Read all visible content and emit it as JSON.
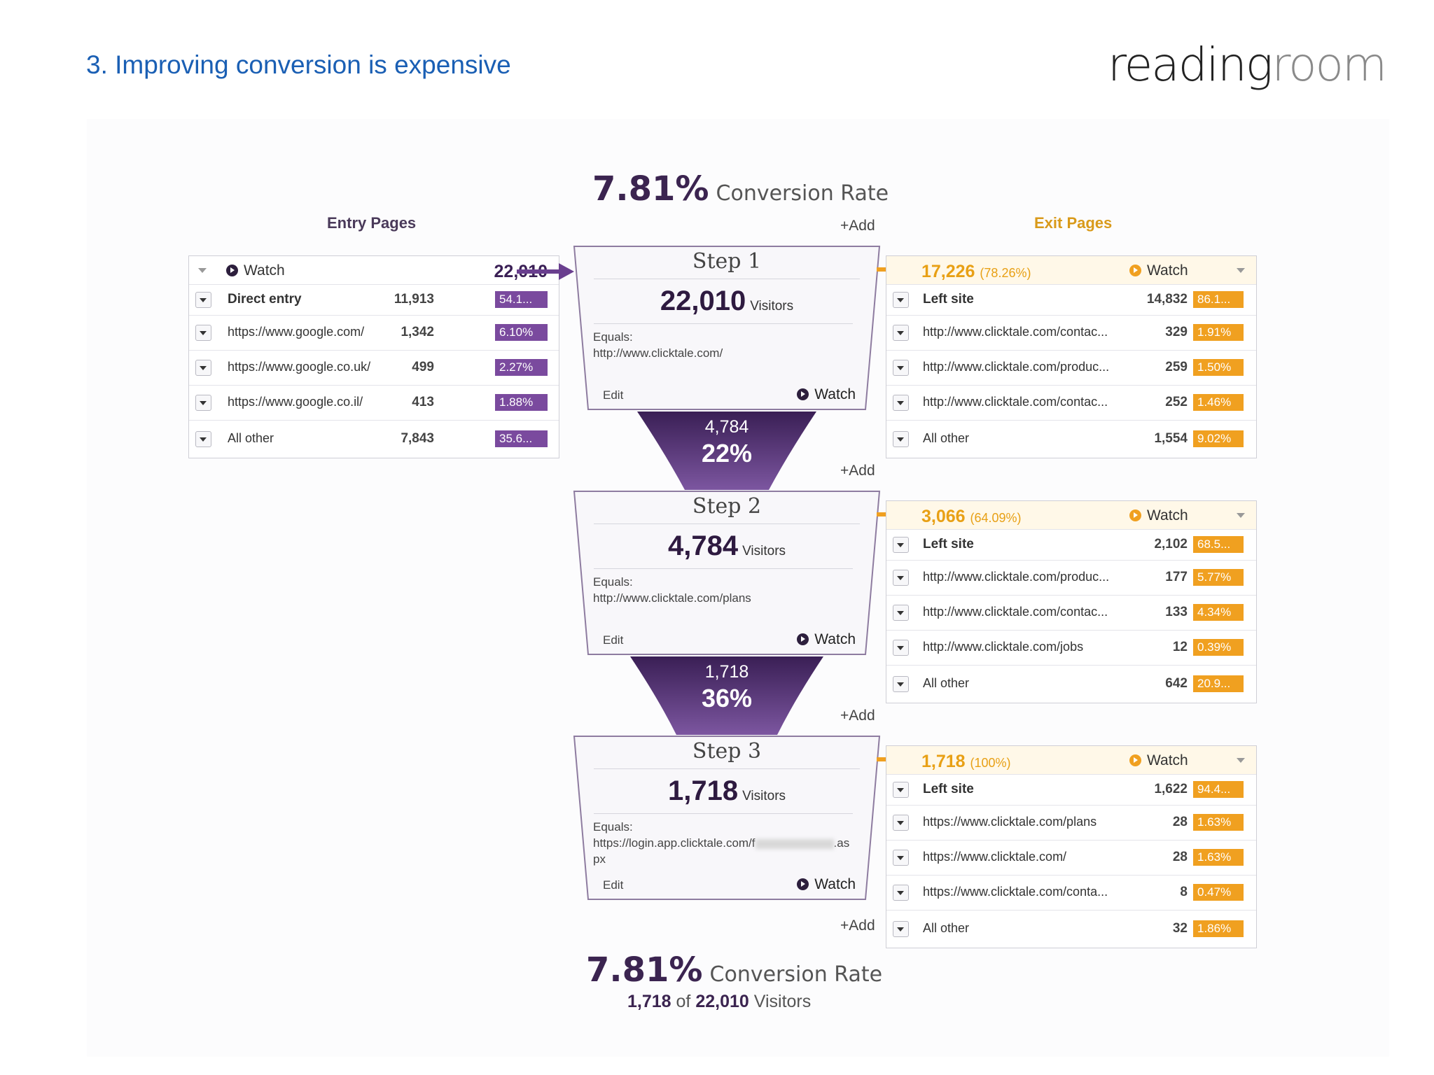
{
  "slide_title": "3. Improving conversion is expensive",
  "logo": {
    "dark": "reading",
    "light": "room"
  },
  "conversion_top": {
    "percent": "7.81%",
    "label": "Conversion Rate"
  },
  "conversion_bottom": {
    "percent": "7.81%",
    "label": "Conversion Rate",
    "converted": "1,718",
    "of": "of",
    "total": "22,010",
    "visitors": "Visitors"
  },
  "entry_title": "Entry Pages",
  "exit_title": "Exit Pages",
  "add_label": "+Add",
  "entry": {
    "watch_label": "Watch",
    "total": "22,010",
    "rows": [
      {
        "label": "Direct entry",
        "count": "11,913",
        "pct": "54.1...",
        "fill": 0.541
      },
      {
        "label": "https://www.google.com/",
        "count": "1,342",
        "pct": "6.10%",
        "fill": 1.0
      },
      {
        "label": "https://www.google.co.uk/",
        "count": "499",
        "pct": "2.27%",
        "fill": 1.0
      },
      {
        "label": "https://www.google.co.il/",
        "count": "413",
        "pct": "1.88%",
        "fill": 1.0
      },
      {
        "label": "All other",
        "count": "7,843",
        "pct": "35.6...",
        "fill": 0.356
      }
    ]
  },
  "steps": [
    {
      "title": "Step 1",
      "visitors": "22,010",
      "visitors_label": "Visitors",
      "equals_label": "Equals:",
      "equals_value": "http://www.clicktale.com/",
      "edit": "Edit",
      "watch": "Watch"
    },
    {
      "title": "Step 2",
      "visitors": "4,784",
      "visitors_label": "Visitors",
      "equals_label": "Equals:",
      "equals_value": "http://www.clicktale.com/plans",
      "edit": "Edit",
      "watch": "Watch"
    },
    {
      "title": "Step 3",
      "visitors": "1,718",
      "visitors_label": "Visitors",
      "equals_label": "Equals:",
      "equals_value_a": "https://login.app.clicktale.com/f",
      "equals_value_b": ".as",
      "equals_value_c": "px",
      "edit": "Edit",
      "watch": "Watch"
    }
  ],
  "funnels": [
    {
      "count": "4,784",
      "percent": "22%"
    },
    {
      "count": "1,718",
      "percent": "36%"
    }
  ],
  "exits": [
    {
      "total": "17,226",
      "total_pct": "(78.26%)",
      "watch_label": "Watch",
      "rows": [
        {
          "label": "Left site",
          "count": "14,832",
          "pct": "86.1...",
          "bold": true
        },
        {
          "label": "http://www.clicktale.com/contac...",
          "count": "329",
          "pct": "1.91%"
        },
        {
          "label": "http://www.clicktale.com/produc...",
          "count": "259",
          "pct": "1.50%"
        },
        {
          "label": "http://www.clicktale.com/contac...",
          "count": "252",
          "pct": "1.46%"
        },
        {
          "label": "All other",
          "count": "1,554",
          "pct": "9.02%"
        }
      ]
    },
    {
      "total": "3,066",
      "total_pct": "(64.09%)",
      "watch_label": "Watch",
      "rows": [
        {
          "label": "Left site",
          "count": "2,102",
          "pct": "68.5...",
          "bold": true
        },
        {
          "label": "http://www.clicktale.com/produc...",
          "count": "177",
          "pct": "5.77%"
        },
        {
          "label": "http://www.clicktale.com/contac...",
          "count": "133",
          "pct": "4.34%"
        },
        {
          "label": "http://www.clicktale.com/jobs",
          "count": "12",
          "pct": "0.39%"
        },
        {
          "label": "All other",
          "count": "642",
          "pct": "20.9..."
        }
      ]
    },
    {
      "total": "1,718",
      "total_pct": "(100%)",
      "watch_label": "Watch",
      "rows": [
        {
          "label": "Left site",
          "count": "1,622",
          "pct": "94.4...",
          "bold": true
        },
        {
          "label": "https://www.clicktale.com/plans",
          "count": "28",
          "pct": "1.63%"
        },
        {
          "label": "https://www.clicktale.com/",
          "count": "28",
          "pct": "1.63%"
        },
        {
          "label": "https://www.clicktale.com/conta...",
          "count": "8",
          "pct": "0.47%"
        },
        {
          "label": "All other",
          "count": "32",
          "pct": "1.86%"
        }
      ]
    }
  ],
  "colors": {
    "purple": "#7a4a9e",
    "dark_purple": "#3a1f55",
    "orange": "#f0a020",
    "title_blue": "#1a5fb4"
  }
}
